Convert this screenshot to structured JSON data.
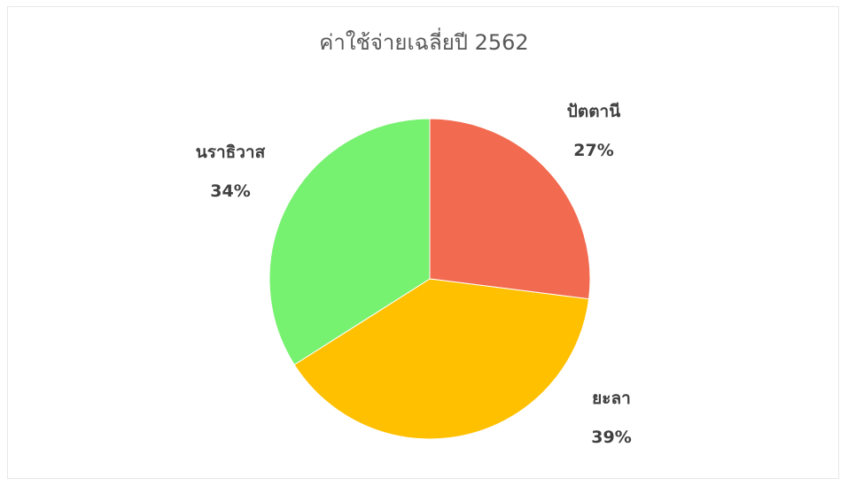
{
  "chart_data": {
    "type": "pie",
    "title": "ค่าใช้จ่ายเฉลี่ยปี  2562",
    "slices": [
      {
        "label": "ปัตตานี",
        "value": 27,
        "percent_label": "27%",
        "color": "#F26B50"
      },
      {
        "label": "ยะลา",
        "value": 39,
        "percent_label": "39%",
        "color": "#FFC000"
      },
      {
        "label": "นราธิวาส",
        "value": 34,
        "percent_label": "34%",
        "color": "#77F170"
      }
    ],
    "legend": "none",
    "data_labels": "outside"
  }
}
